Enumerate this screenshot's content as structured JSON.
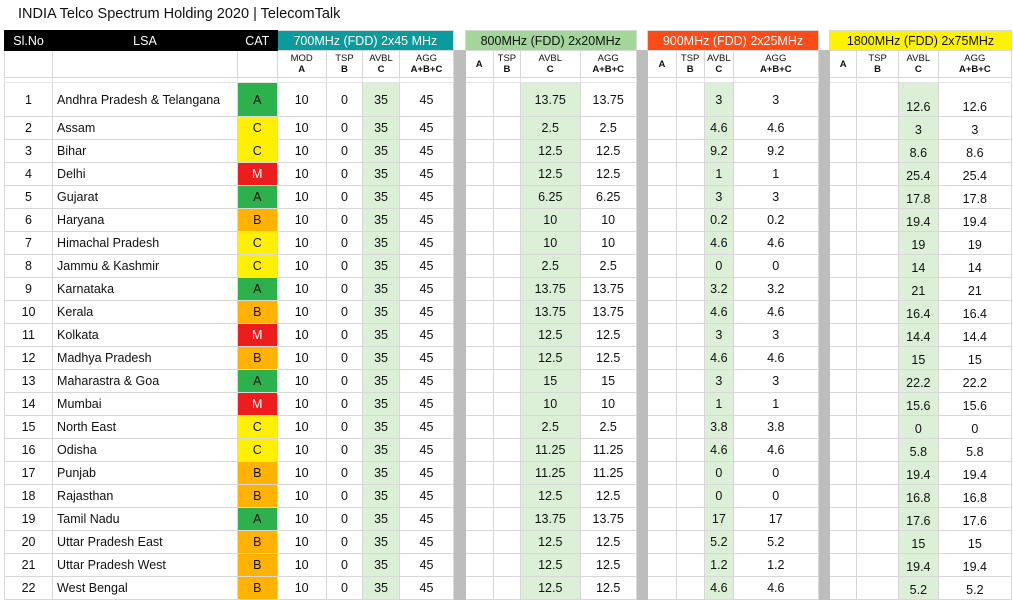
{
  "title": "INDIA Telco Spectrum Holding 2020 | TelecomTalk",
  "headers": {
    "slno": "Sl.No",
    "lsa": "LSA",
    "cat": "CAT",
    "band700": "700MHz (FDD) 2x45 MHz",
    "band800": "800MHz (FDD) 2x20MHz",
    "band900": "900MHz (FDD) 2x25MHz",
    "band1800": "1800MHz (FDD) 2x75MHz",
    "sub700": [
      [
        "MOD",
        "A"
      ],
      [
        "TSP",
        "B"
      ],
      [
        "AVBL",
        "C"
      ],
      [
        "AGG",
        "A+B+C"
      ]
    ],
    "sub": [
      [
        "",
        "A"
      ],
      [
        "TSP",
        "B"
      ],
      [
        "AVBL",
        "C"
      ],
      [
        "AGG",
        "A+B+C"
      ]
    ]
  },
  "colors": {
    "band700": "#0b9a9d",
    "band800": "#a3d79a",
    "band900": "#ff4b18",
    "band1800": "#fff200",
    "catA": "#2db14c",
    "catB": "#ffb300",
    "catC": "#ffef00",
    "catM": "#ee1d1d"
  },
  "rows": [
    {
      "sl": "1",
      "lsa": "Andhra Pradesh & Telangana",
      "cat": "A",
      "b700": [
        "10",
        "0",
        "35",
        "45"
      ],
      "b800": [
        "13.75",
        "13.75"
      ],
      "b900": [
        "3",
        "3"
      ],
      "b1800": [
        "12.6",
        "12.6"
      ]
    },
    {
      "sl": "2",
      "lsa": "Assam",
      "cat": "C",
      "b700": [
        "10",
        "0",
        "35",
        "45"
      ],
      "b800": [
        "2.5",
        "2.5"
      ],
      "b900": [
        "4.6",
        "4.6"
      ],
      "b1800": [
        "3",
        "3"
      ]
    },
    {
      "sl": "3",
      "lsa": "Bihar",
      "cat": "C",
      "b700": [
        "10",
        "0",
        "35",
        "45"
      ],
      "b800": [
        "12.5",
        "12.5"
      ],
      "b900": [
        "9.2",
        "9.2"
      ],
      "b1800": [
        "8.6",
        "8.6"
      ]
    },
    {
      "sl": "4",
      "lsa": "Delhi",
      "cat": "M",
      "b700": [
        "10",
        "0",
        "35",
        "45"
      ],
      "b800": [
        "12.5",
        "12.5"
      ],
      "b900": [
        "1",
        "1"
      ],
      "b1800": [
        "25.4",
        "25.4"
      ]
    },
    {
      "sl": "5",
      "lsa": "Gujarat",
      "cat": "A",
      "b700": [
        "10",
        "0",
        "35",
        "45"
      ],
      "b800": [
        "6.25",
        "6.25"
      ],
      "b900": [
        "3",
        "3"
      ],
      "b1800": [
        "17.8",
        "17.8"
      ]
    },
    {
      "sl": "6",
      "lsa": "Haryana",
      "cat": "B",
      "b700": [
        "10",
        "0",
        "35",
        "45"
      ],
      "b800": [
        "10",
        "10"
      ],
      "b900": [
        "0.2",
        "0.2"
      ],
      "b1800": [
        "19.4",
        "19.4"
      ]
    },
    {
      "sl": "7",
      "lsa": "Himachal Pradesh",
      "cat": "C",
      "b700": [
        "10",
        "0",
        "35",
        "45"
      ],
      "b800": [
        "10",
        "10"
      ],
      "b900": [
        "4.6",
        "4.6"
      ],
      "b1800": [
        "19",
        "19"
      ]
    },
    {
      "sl": "8",
      "lsa": "Jammu & Kashmir",
      "cat": "C",
      "b700": [
        "10",
        "0",
        "35",
        "45"
      ],
      "b800": [
        "2.5",
        "2.5"
      ],
      "b900": [
        "0",
        "0"
      ],
      "b1800": [
        "14",
        "14"
      ]
    },
    {
      "sl": "9",
      "lsa": "Karnataka",
      "cat": "A",
      "b700": [
        "10",
        "0",
        "35",
        "45"
      ],
      "b800": [
        "13.75",
        "13.75"
      ],
      "b900": [
        "3.2",
        "3.2"
      ],
      "b1800": [
        "21",
        "21"
      ]
    },
    {
      "sl": "10",
      "lsa": "Kerala",
      "cat": "B",
      "b700": [
        "10",
        "0",
        "35",
        "45"
      ],
      "b800": [
        "13.75",
        "13.75"
      ],
      "b900": [
        "4.6",
        "4.6"
      ],
      "b1800": [
        "16.4",
        "16.4"
      ]
    },
    {
      "sl": "11",
      "lsa": "Kolkata",
      "cat": "M",
      "b700": [
        "10",
        "0",
        "35",
        "45"
      ],
      "b800": [
        "12.5",
        "12.5"
      ],
      "b900": [
        "3",
        "3"
      ],
      "b1800": [
        "14.4",
        "14.4"
      ]
    },
    {
      "sl": "12",
      "lsa": "Madhya Pradesh",
      "cat": "B",
      "b700": [
        "10",
        "0",
        "35",
        "45"
      ],
      "b800": [
        "12.5",
        "12.5"
      ],
      "b900": [
        "4.6",
        "4.6"
      ],
      "b1800": [
        "15",
        "15"
      ]
    },
    {
      "sl": "13",
      "lsa": "Maharastra & Goa",
      "cat": "A",
      "b700": [
        "10",
        "0",
        "35",
        "45"
      ],
      "b800": [
        "15",
        "15"
      ],
      "b900": [
        "3",
        "3"
      ],
      "b1800": [
        "22.2",
        "22.2"
      ]
    },
    {
      "sl": "14",
      "lsa": "Mumbai",
      "cat": "M",
      "b700": [
        "10",
        "0",
        "35",
        "45"
      ],
      "b800": [
        "10",
        "10"
      ],
      "b900": [
        "1",
        "1"
      ],
      "b1800": [
        "15.6",
        "15.6"
      ]
    },
    {
      "sl": "15",
      "lsa": "North East",
      "cat": "C",
      "b700": [
        "10",
        "0",
        "35",
        "45"
      ],
      "b800": [
        "2.5",
        "2.5"
      ],
      "b900": [
        "3.8",
        "3.8"
      ],
      "b1800": [
        "0",
        "0"
      ]
    },
    {
      "sl": "16",
      "lsa": "Odisha",
      "cat": "C",
      "b700": [
        "10",
        "0",
        "35",
        "45"
      ],
      "b800": [
        "11.25",
        "11.25"
      ],
      "b900": [
        "4.6",
        "4.6"
      ],
      "b1800": [
        "5.8",
        "5.8"
      ]
    },
    {
      "sl": "17",
      "lsa": "Punjab",
      "cat": "B",
      "b700": [
        "10",
        "0",
        "35",
        "45"
      ],
      "b800": [
        "11.25",
        "11.25"
      ],
      "b900": [
        "0",
        "0"
      ],
      "b1800": [
        "19.4",
        "19.4"
      ]
    },
    {
      "sl": "18",
      "lsa": "Rajasthan",
      "cat": "B",
      "b700": [
        "10",
        "0",
        "35",
        "45"
      ],
      "b800": [
        "12.5",
        "12.5"
      ],
      "b900": [
        "0",
        "0"
      ],
      "b1800": [
        "16.8",
        "16.8"
      ]
    },
    {
      "sl": "19",
      "lsa": "Tamil Nadu",
      "cat": "A",
      "b700": [
        "10",
        "0",
        "35",
        "45"
      ],
      "b800": [
        "13.75",
        "13.75"
      ],
      "b900": [
        "17",
        "17"
      ],
      "b1800": [
        "17.6",
        "17.6"
      ]
    },
    {
      "sl": "20",
      "lsa": "Uttar Pradesh East",
      "cat": "B",
      "b700": [
        "10",
        "0",
        "35",
        "45"
      ],
      "b800": [
        "12.5",
        "12.5"
      ],
      "b900": [
        "5.2",
        "5.2"
      ],
      "b1800": [
        "15",
        "15"
      ]
    },
    {
      "sl": "21",
      "lsa": "Uttar Pradesh West",
      "cat": "B",
      "b700": [
        "10",
        "0",
        "35",
        "45"
      ],
      "b800": [
        "12.5",
        "12.5"
      ],
      "b900": [
        "1.2",
        "1.2"
      ],
      "b1800": [
        "19.4",
        "19.4"
      ]
    },
    {
      "sl": "22",
      "lsa": "West Bengal",
      "cat": "B",
      "b700": [
        "10",
        "0",
        "35",
        "45"
      ],
      "b800": [
        "12.5",
        "12.5"
      ],
      "b900": [
        "4.6",
        "4.6"
      ],
      "b1800": [
        "5.2",
        "5.2"
      ]
    }
  ]
}
